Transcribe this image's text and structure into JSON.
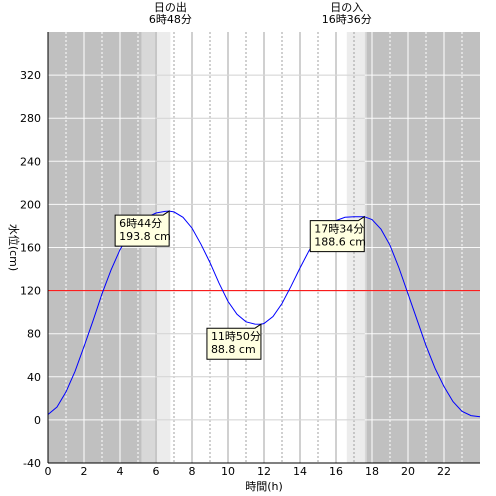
{
  "chart_data": {
    "type": "line",
    "xlabel": "時間(h)",
    "ylabel": "水位(cm)",
    "xlim": [
      0,
      24
    ],
    "ylim": [
      -40,
      360
    ],
    "xticks": [
      0,
      2,
      4,
      6,
      8,
      10,
      12,
      14,
      16,
      18,
      20,
      22
    ],
    "yticks": [
      -40,
      0,
      40,
      80,
      120,
      160,
      200,
      240,
      280,
      320
    ],
    "grid": true,
    "series": [
      {
        "color": "#0000ff",
        "x": [
          0,
          0.5,
          1,
          1.5,
          2,
          2.5,
          3,
          3.5,
          4,
          4.5,
          5,
          5.5,
          6,
          6.5,
          6.73,
          7,
          7.5,
          8,
          8.5,
          9,
          9.5,
          10,
          10.5,
          11,
          11.5,
          11.83,
          12,
          12.5,
          13,
          13.5,
          14,
          14.5,
          15,
          15.5,
          16,
          16.5,
          17,
          17.57,
          18,
          18.5,
          19,
          19.5,
          20,
          20.5,
          21,
          21.5,
          22,
          22.5,
          23,
          23.5,
          24
        ],
        "y": [
          5,
          12,
          26,
          45,
          68,
          92,
          117,
          139,
          158,
          172,
          182,
          188,
          192,
          193.5,
          193.8,
          193,
          188,
          178,
          163,
          146,
          127,
          110,
          98,
          91,
          88.9,
          88.8,
          89.5,
          96,
          108,
          124,
          141,
          157,
          170,
          179,
          185,
          188,
          188.6,
          188.6,
          186,
          177,
          162,
          141,
          117,
          93,
          69,
          48,
          31,
          17,
          8,
          4,
          3
        ]
      }
    ],
    "reference_line": {
      "y": 120,
      "color": "#ff0000"
    },
    "daylight": {
      "sunrise": {
        "label": "日の出",
        "time": "6時48分",
        "hour": 6.8
      },
      "sunset": {
        "label": "日の入",
        "time": "16時36分",
        "hour": 16.6
      }
    },
    "annotations": [
      {
        "time": "6時44分",
        "level": "193.8 cm",
        "x": 6.73,
        "y": 193.8
      },
      {
        "time": "11時50分",
        "level": "88.8 cm",
        "x": 11.83,
        "y": 88.8
      },
      {
        "time": "17時34分",
        "level": "188.6 cm",
        "x": 17.57,
        "y": 188.6
      }
    ],
    "colors": {
      "night": "#c0c0c0",
      "twilight": "#d8d8d8",
      "dawn": "#ececec",
      "day": "#ffffff",
      "curve": "#0000ff",
      "reference": "#ff0000",
      "callout_fill": "#ffffe0"
    }
  }
}
